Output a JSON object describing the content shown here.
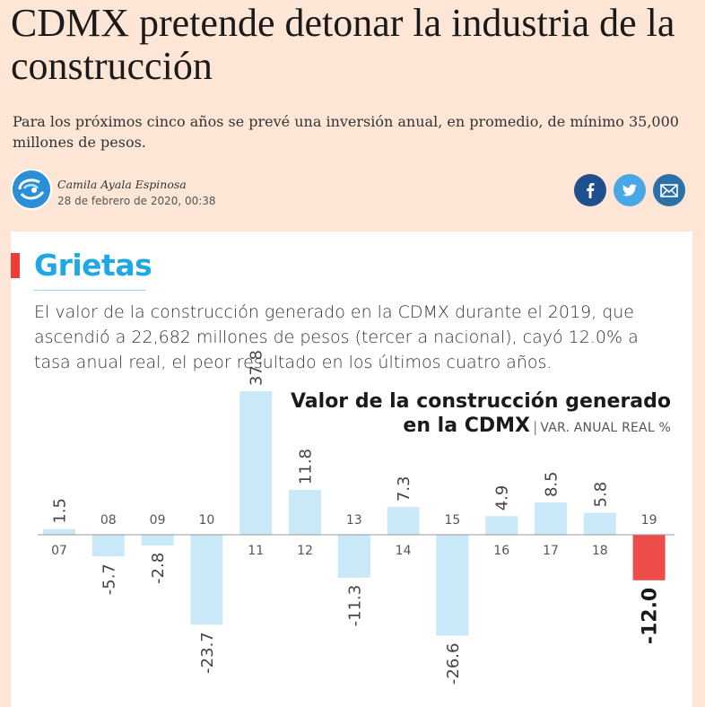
{
  "article": {
    "headline": "CDMX pretende detonar la industria de la construcción",
    "deck": "Para los próximos cinco años se prevé una inversión anual, en promedio, de mínimo 35,000 millones de pesos.",
    "author": "Camila Ayala Espinosa",
    "date": "28 de febrero de 2020, 00:38"
  },
  "share": {
    "icons": [
      "facebook-icon",
      "twitter-icon",
      "mail-icon"
    ],
    "colors": {
      "facebook": "#1e4f8f",
      "twitter": "#4aa7e6",
      "mail": "#2c70a8"
    }
  },
  "infographic": {
    "section": "Grietas",
    "intro": "El valor de la construcción generado en la CDMX durante el 2019, que ascendió a 22,682 millones de pesos (tercer a nacional), cayó 12.0% a tasa anual real, el peor resultado en los últimos cuatro años."
  },
  "chart_data": {
    "type": "bar",
    "title_line1": "Valor de la construcción generado",
    "title_line2": "en la CDMX",
    "subtitle": "VAR. ANUAL REAL %",
    "categories": [
      "07",
      "08",
      "09",
      "10",
      "11",
      "12",
      "13",
      "14",
      "15",
      "16",
      "17",
      "18",
      "19"
    ],
    "values": [
      1.5,
      -5.7,
      -2.8,
      -23.7,
      37.8,
      11.8,
      -11.3,
      7.3,
      -26.6,
      4.9,
      8.5,
      5.8,
      -12.0
    ],
    "value_labels": [
      "1.5",
      "-5.7",
      "-2.8",
      "-23.7",
      "37.8",
      "11.8",
      "-11.3",
      "7.3",
      "-26.6",
      "4.9",
      "8.5",
      "5.8",
      "-12.0"
    ],
    "highlight_index": 12,
    "colors": {
      "bar": "#c9e8f8",
      "highlight": "#ee4b4b",
      "axis": "#999999"
    }
  }
}
